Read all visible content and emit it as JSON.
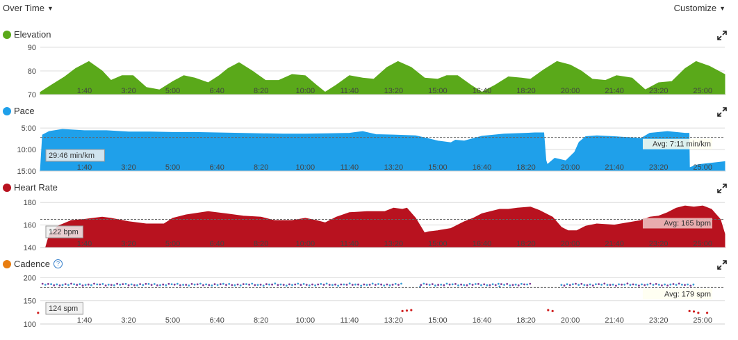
{
  "toolbar": {
    "view_label": "Over Time",
    "customize_label": "Customize"
  },
  "colors": {
    "elevation": "#5aa91a",
    "pace": "#1fa0ea",
    "heart_rate": "#b8121f",
    "cadence": "#e87d10",
    "cadence_dot_a": "#7d3a96",
    "cadence_dot_b": "#3b9ed6",
    "cadence_dot_low": "#d02020"
  },
  "chart_data": [
    {
      "type": "area",
      "title": "Elevation",
      "ylim": [
        70,
        90
      ],
      "yticks": [
        "90",
        "80",
        "70"
      ],
      "yvals": [
        90,
        80,
        70
      ],
      "xlim": [
        0,
        1550
      ],
      "xticks": [
        "1:40",
        "3:20",
        "5:00",
        "6:40",
        "8:20",
        "10:00",
        "11:40",
        "13:20",
        "15:00",
        "16:40",
        "18:20",
        "20:00",
        "21:40",
        "23:20",
        "25:00"
      ],
      "xtick_values": [
        100,
        200,
        300,
        400,
        500,
        600,
        700,
        800,
        900,
        1000,
        1100,
        1200,
        1300,
        1400,
        1500
      ],
      "grid": true,
      "series": [
        {
          "x": [
            0,
            25,
            55,
            80,
            110,
            140,
            160,
            185,
            210,
            240,
            270,
            300,
            325,
            350,
            380,
            405,
            425,
            450,
            480,
            510,
            540,
            570,
            600,
            625,
            645,
            670,
            700,
            730,
            755,
            785,
            810,
            840,
            870,
            900,
            920,
            945,
            975,
            1000,
            1030,
            1060,
            1090,
            1110,
            1140,
            1170,
            1200,
            1225,
            1250,
            1280,
            1305,
            1340,
            1370,
            1400,
            1430,
            1460,
            1485,
            1515,
            1550
          ],
          "values": [
            71,
            74,
            77.5,
            81,
            84,
            80,
            76,
            78,
            78,
            73,
            72,
            75.5,
            78,
            77,
            75,
            78,
            81,
            83.5,
            80,
            76,
            76,
            78.5,
            78,
            74,
            71,
            74,
            78,
            77,
            76.5,
            81.5,
            84,
            81.5,
            77,
            76.5,
            78,
            78,
            74,
            71,
            74,
            77.5,
            77,
            76.5,
            80.5,
            84,
            82.5,
            80,
            76.5,
            76,
            78,
            77,
            72,
            75,
            75.5,
            81,
            84,
            82,
            78.5
          ]
        }
      ]
    },
    {
      "type": "area",
      "title": "Pace",
      "unit": "min/km",
      "ylim": [
        15,
        4
      ],
      "yticks": [
        "5:00",
        "10:00",
        "15:00"
      ],
      "yvals": [
        5,
        10,
        15
      ],
      "xlim": [
        0,
        1550
      ],
      "xticks": [
        "1:40",
        "3:20",
        "5:00",
        "6:40",
        "8:20",
        "10:00",
        "11:40",
        "13:20",
        "15:00",
        "16:40",
        "18:20",
        "20:00",
        "21:40",
        "23:20",
        "25:00"
      ],
      "xtick_values": [
        100,
        200,
        300,
        400,
        500,
        600,
        700,
        800,
        900,
        1000,
        1100,
        1200,
        1300,
        1400,
        1500
      ],
      "grid": true,
      "avg_value": 7.18,
      "avg_label": "Avg: 7:11 min/km",
      "min_label": "29:46 min/km",
      "series": [
        {
          "x": [
            0,
            5,
            20,
            50,
            100,
            150,
            200,
            250,
            300,
            350,
            400,
            450,
            500,
            550,
            600,
            650,
            700,
            730,
            760,
            800,
            850,
            880,
            900,
            930,
            940,
            960,
            1000,
            1050,
            1100,
            1120,
            1140,
            1145,
            1148,
            1165,
            1190,
            1210,
            1220,
            1235,
            1260,
            1300,
            1330,
            1360,
            1380,
            1420,
            1460,
            1469,
            1470,
            1490,
            1550
          ],
          "values": [
            15,
            6.6,
            5.8,
            5.3,
            5.6,
            5.6,
            5.9,
            5.9,
            6.0,
            6.0,
            6.1,
            6.2,
            6.3,
            6.4,
            6.4,
            6.3,
            6.2,
            5.8,
            6.5,
            6.6,
            6.8,
            7.5,
            8.0,
            8.4,
            7.8,
            8.0,
            6.9,
            6.4,
            6.2,
            6.1,
            6.1,
            12.5,
            13.5,
            12.0,
            12.6,
            10.6,
            8.3,
            7.0,
            6.8,
            7.0,
            7.2,
            7.4,
            6.2,
            5.8,
            6.2,
            6.2,
            14.2,
            13.5,
            12.8
          ]
        }
      ]
    },
    {
      "type": "area",
      "title": "Heart Rate",
      "unit": "bpm",
      "ylim": [
        140,
        182
      ],
      "yticks": [
        "180",
        "160",
        "140"
      ],
      "yvals": [
        180,
        160,
        140
      ],
      "xlim": [
        0,
        1550
      ],
      "xticks": [
        "1:40",
        "3:20",
        "5:00",
        "6:40",
        "8:20",
        "10:00",
        "11:40",
        "13:20",
        "15:00",
        "16:40",
        "18:20",
        "20:00",
        "21:40",
        "23:20",
        "25:00"
      ],
      "xtick_values": [
        100,
        200,
        300,
        400,
        500,
        600,
        700,
        800,
        900,
        1000,
        1100,
        1200,
        1300,
        1400,
        1500
      ],
      "grid": true,
      "avg_value": 165,
      "avg_label": "Avg: 165 bpm",
      "min_label": "122 bpm",
      "series": [
        {
          "x": [
            0,
            12,
            20,
            40,
            70,
            100,
            140,
            160,
            200,
            240,
            280,
            300,
            330,
            380,
            420,
            460,
            500,
            530,
            570,
            600,
            625,
            645,
            670,
            700,
            740,
            780,
            800,
            820,
            830,
            850,
            870,
            880,
            900,
            930,
            960,
            980,
            1000,
            1040,
            1060,
            1080,
            1110,
            1130,
            1160,
            1180,
            1195,
            1215,
            1235,
            1260,
            1300,
            1330,
            1360,
            1380,
            1400,
            1420,
            1440,
            1460,
            1480,
            1500,
            1520,
            1540,
            1550
          ],
          "values": [
            140,
            140,
            151,
            159,
            164,
            165,
            167,
            166,
            163,
            161,
            161,
            166,
            169,
            172,
            170,
            168,
            167,
            164,
            164,
            166,
            164,
            162,
            167,
            171,
            172,
            172,
            175,
            174,
            175,
            166,
            153,
            154,
            155,
            157,
            163,
            166,
            170,
            174,
            174,
            175,
            176,
            173,
            167,
            158,
            155,
            155,
            159,
            161,
            160,
            162,
            164,
            167,
            168,
            171,
            175,
            177,
            176,
            177,
            174,
            165,
            152
          ]
        }
      ]
    },
    {
      "type": "scatter",
      "title": "Cadence",
      "unit": "spm",
      "ylim": [
        100,
        202
      ],
      "yticks": [
        "200",
        "150",
        "100"
      ],
      "yvals": [
        200,
        150,
        100
      ],
      "xlim": [
        0,
        1550
      ],
      "xticks": [
        "1:40",
        "3:20",
        "5:00",
        "6:40",
        "8:20",
        "10:00",
        "11:40",
        "13:20",
        "15:00",
        "16:40",
        "18:20",
        "20:00",
        "21:40",
        "23:20",
        "25:00"
      ],
      "xtick_values": [
        100,
        200,
        300,
        400,
        500,
        600,
        700,
        800,
        900,
        1000,
        1100,
        1200,
        1300,
        1400,
        1500
      ],
      "grid": true,
      "avg_value": 179,
      "avg_label": "Avg: 179 spm",
      "min_label": "124 spm",
      "series": [
        {
          "main_ranges": [
            [
              5,
              820
            ],
            [
              862,
              1110
            ],
            [
              1180,
              1480
            ]
          ],
          "main_mean": 185,
          "low_points": [
            [
              -5,
              124
            ],
            [
              820,
              128
            ],
            [
              830,
              129
            ],
            [
              840,
              130
            ],
            [
              1150,
              130
            ],
            [
              1160,
              128
            ],
            [
              1470,
              128
            ],
            [
              1480,
              127
            ],
            [
              1490,
              124
            ],
            [
              1510,
              124
            ]
          ],
          "outliers": [
            [
              860,
              180
            ],
            [
              1040,
              181
            ]
          ]
        }
      ]
    }
  ]
}
